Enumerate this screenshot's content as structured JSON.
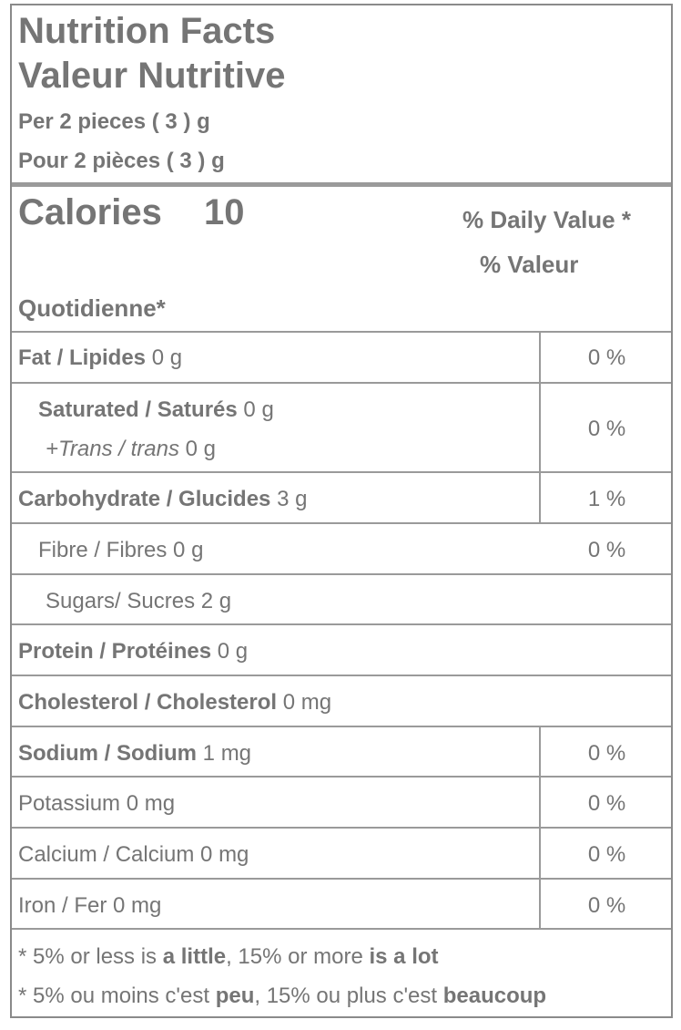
{
  "header": {
    "title_en": "Nutrition Facts",
    "title_fr": "Valeur Nutritive",
    "serving_en": "Per 2 pieces ( 3 ) g",
    "serving_fr": "Pour 2 pièces ( 3 ) g"
  },
  "calories": {
    "label": "Calories",
    "value": "10",
    "dv_line1": "% Daily Value *",
    "dv_line2": "% Valeur",
    "dv_line3": "Quotidienne*"
  },
  "rows": {
    "fat": {
      "label": "Fat / Lipides",
      "amount": "0 g",
      "dv": "0 %"
    },
    "saturated": {
      "label": "Saturated / Saturés",
      "amount": "0 g",
      "dv": "0 %"
    },
    "trans": {
      "label": "+Trans / trans",
      "amount": "0 g"
    },
    "carb": {
      "label": "Carbohydrate / Glucides",
      "amount": "3 g",
      "dv": "1 %"
    },
    "fibre": {
      "label": "Fibre / Fibres",
      "amount": "0 g",
      "dv": "0 %"
    },
    "sugars": {
      "label": "Sugars/ Sucres",
      "amount": "2 g"
    },
    "protein": {
      "label": "Protein / Protéines",
      "amount": "0 g"
    },
    "cholesterol": {
      "label": "Cholesterol / Cholesterol",
      "amount": "0 mg"
    },
    "sodium": {
      "label": "Sodium / Sodium",
      "amount": "1 mg",
      "dv": "0 %"
    },
    "potassium": {
      "label": "Potassium",
      "amount": "0 mg",
      "dv": "0 %"
    },
    "calcium": {
      "label": "Calcium / Calcium",
      "amount": "0 mg",
      "dv": "0 %"
    },
    "iron": {
      "label": "Iron / Fer",
      "amount": "0 mg",
      "dv": "0 %"
    }
  },
  "footnote": {
    "en_prefix": "* 5% or less is",
    "en_little": "a little",
    "en_mid": ", 15% or more",
    "en_lot": "is a lot",
    "fr_prefix": "* 5% ou moins c'est",
    "fr_peu": "peu",
    "fr_mid": ", 15% ou plus c'est",
    "fr_beaucoup": "beaucoup"
  },
  "colors": {
    "text": "#757575",
    "rules": "#9a9a9a",
    "border": "#8a8a8a"
  }
}
